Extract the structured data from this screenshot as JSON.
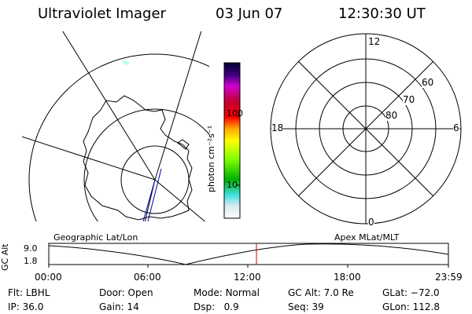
{
  "header": {
    "instrument": "Ultraviolet Imager",
    "date": "03 Jun 07",
    "time": "12:30:30 UT"
  },
  "left_map": {
    "label": "Geographic Lat/Lon"
  },
  "right_map": {
    "label": "Apex  MLat/MLT",
    "mlt_labels": [
      "12",
      "18",
      "6",
      "0"
    ],
    "lat_labels": [
      "60",
      "70",
      "80"
    ]
  },
  "colorbar": {
    "unit": "photon cm⁻²s⁻¹",
    "ticks": [
      "100",
      "10"
    ],
    "scale": "log"
  },
  "altitude_plot": {
    "ylabel": "GC Alt",
    "yticks": [
      "9.0",
      "1.8"
    ],
    "xticks": [
      "00:00",
      "06:00",
      "12:00",
      "18:00",
      "23:59"
    ],
    "current_time": "12:30:30"
  },
  "info": {
    "flt": {
      "label": "Flt:",
      "value": "LBHL"
    },
    "ip": {
      "label": "IP:",
      "value": "36.0"
    },
    "door": {
      "label": "Door:",
      "value": "Open"
    },
    "gain": {
      "label": "Gain:",
      "value": "14"
    },
    "mode": {
      "label": "Mode:",
      "value": "Normal"
    },
    "dsp": {
      "label": "Dsp:",
      "value": "0.9"
    },
    "gcalt": {
      "label": "GC Alt:",
      "value": "7.0 Re"
    },
    "seq": {
      "label": "Seq:",
      "value": "39"
    },
    "glat": {
      "label": "GLat:",
      "value": "−72.0"
    },
    "glon": {
      "label": "GLon:",
      "value": "112.8"
    }
  },
  "colors": {
    "line": "#000000",
    "marker": "#cc0000",
    "trace": "#0000aa"
  }
}
